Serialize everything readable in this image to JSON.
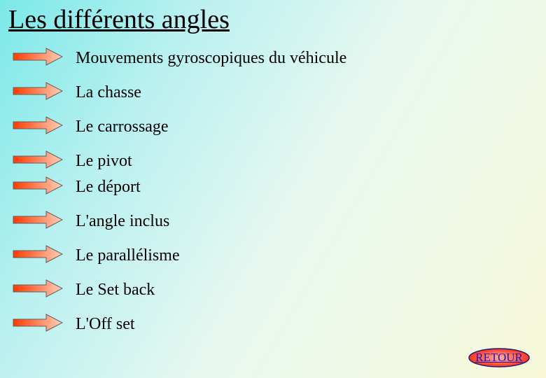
{
  "title": "Les différents angles",
  "items": [
    {
      "label": "Mouvements gyroscopiques du véhicule"
    },
    {
      "label": "La chasse"
    },
    {
      "label": "Le carrossage"
    },
    {
      "label": "Le pivot"
    },
    {
      "label": "Le déport"
    },
    {
      "label": "L'angle inclus"
    },
    {
      "label": "Le parallélisme"
    },
    {
      "label": "Le Set back"
    },
    {
      "label": "L'Off set"
    }
  ],
  "retour_label": "RETOUR",
  "arrow": {
    "fill_start": "#ff3a00",
    "fill_end": "#ffd0b8",
    "stroke": "#606060"
  },
  "retour_button": {
    "fill_start": "#ff1a00",
    "fill_end": "#ffb0a0",
    "stroke": "#1a1a80",
    "text_color": "#1818c8"
  },
  "background_gradient": [
    "#7ce8e8",
    "#b8f0f0",
    "#e8f8f0",
    "#f8f8d8"
  ]
}
